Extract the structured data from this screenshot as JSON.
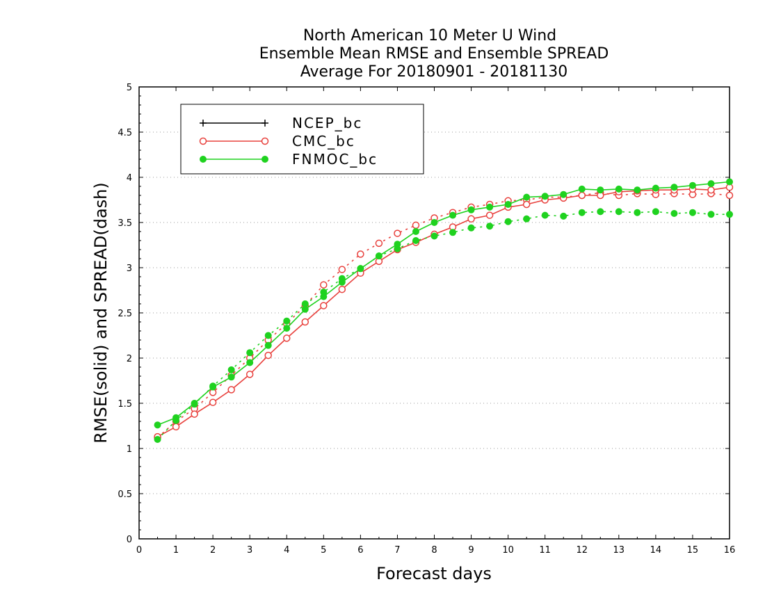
{
  "chart_data": {
    "type": "line",
    "title_lines": [
      "North American 10 Meter U Wind",
      "Ensemble Mean RMSE and Ensemble SPREAD",
      "Average For 20180901 - 20181130"
    ],
    "xlabel": "Forecast days",
    "ylabel": "RMSE(solid) and SPREAD(dash)",
    "xlim": [
      0,
      16
    ],
    "ylim": [
      0,
      5
    ],
    "x_ticks": [
      "0",
      "1",
      "2",
      "3",
      "4",
      "5",
      "6",
      "7",
      "8",
      "9",
      "10",
      "11",
      "12",
      "13",
      "14",
      "15",
      "16"
    ],
    "y_ticks": [
      "0",
      "0.5",
      "1",
      "1.5",
      "2",
      "2.5",
      "3",
      "3.5",
      "4",
      "4.5",
      "5"
    ],
    "grid": "horizontal dotted",
    "legend_position": "top-left",
    "x": [
      0.5,
      1,
      1.5,
      2,
      2.5,
      3,
      3.5,
      4,
      4.5,
      5,
      5.5,
      6,
      6.5,
      7,
      7.5,
      8,
      8.5,
      9,
      9.5,
      10,
      10.5,
      11,
      11.5,
      12,
      12.5,
      13,
      13.5,
      14,
      14.5,
      15,
      15.5,
      16
    ],
    "series": [
      {
        "name": "NCEP_bc",
        "color": "#000000",
        "marker": "plus",
        "rmse": [],
        "spread": []
      },
      {
        "name": "CMC_bc",
        "color": "#e8403c",
        "marker": "open-circle",
        "rmse": [
          1.13,
          1.24,
          1.38,
          1.51,
          1.65,
          1.82,
          2.03,
          2.22,
          2.4,
          2.58,
          2.76,
          2.94,
          3.07,
          3.2,
          3.28,
          3.37,
          3.45,
          3.54,
          3.58,
          3.67,
          3.7,
          3.75,
          3.77,
          3.8,
          3.8,
          3.84,
          3.85,
          3.86,
          3.86,
          3.87,
          3.86,
          3.89
        ],
        "spread": [
          1.12,
          1.3,
          1.44,
          1.62,
          1.81,
          2.0,
          2.2,
          2.38,
          2.58,
          2.81,
          2.98,
          3.15,
          3.27,
          3.38,
          3.47,
          3.55,
          3.61,
          3.67,
          3.7,
          3.74,
          3.75,
          3.78,
          3.78,
          3.8,
          3.83,
          3.8,
          3.82,
          3.81,
          3.82,
          3.81,
          3.82,
          3.8
        ]
      },
      {
        "name": "FNMOC_bc",
        "color": "#1fd21f",
        "marker": "filled-circle",
        "rmse": [
          1.26,
          1.34,
          1.5,
          1.68,
          1.79,
          1.95,
          2.14,
          2.33,
          2.54,
          2.68,
          2.84,
          2.99,
          3.13,
          3.26,
          3.4,
          3.5,
          3.58,
          3.64,
          3.67,
          3.7,
          3.78,
          3.79,
          3.81,
          3.87,
          3.86,
          3.87,
          3.86,
          3.88,
          3.89,
          3.91,
          3.93,
          3.95
        ],
        "spread": [
          1.1,
          1.31,
          1.49,
          1.69,
          1.87,
          2.06,
          2.25,
          2.41,
          2.6,
          2.73,
          2.88,
          2.99,
          3.13,
          3.21,
          3.3,
          3.35,
          3.39,
          3.44,
          3.46,
          3.51,
          3.54,
          3.58,
          3.57,
          3.61,
          3.62,
          3.62,
          3.61,
          3.62,
          3.6,
          3.61,
          3.59,
          3.59
        ]
      }
    ]
  }
}
